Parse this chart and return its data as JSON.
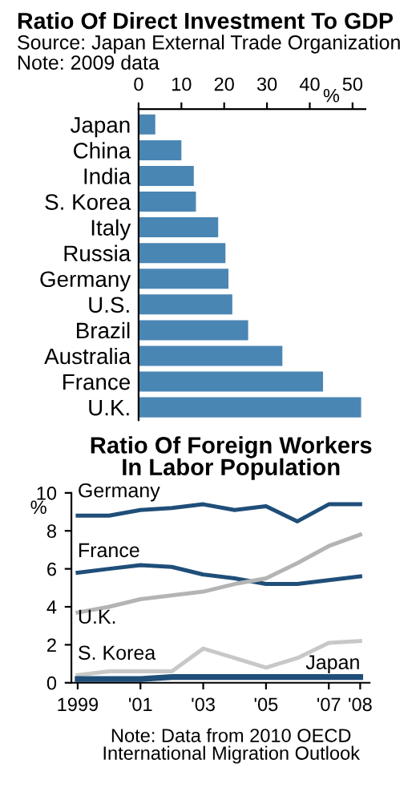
{
  "chart_data": [
    {
      "type": "bar",
      "orientation": "horizontal",
      "title": "Ratio Of Direct Investment To GDP",
      "subtitle": "Source: Japan External Trade Organization",
      "annotations": [
        "Note: 2009 data"
      ],
      "xlabel": "%",
      "categories": [
        "Japan",
        "China",
        "India",
        "S. Korea",
        "Italy",
        "Russia",
        "Germany",
        "U.S.",
        "Brazil",
        "Australia",
        "France",
        "U.K."
      ],
      "values": [
        3.9,
        10,
        12.9,
        13.4,
        18.6,
        20.3,
        21.0,
        21.9,
        25.6,
        33.6,
        43.1,
        52
      ],
      "color": "#4a86b4",
      "xlim": [
        0,
        53
      ],
      "xticks": [
        0,
        10,
        20,
        30,
        40,
        50
      ],
      "grid": false
    },
    {
      "type": "line",
      "title": "Ratio Of Foreign Workers\nIn Labor Population",
      "ylabel": "%",
      "annotations": [
        "Note: Data from 2010 OECD\nInternational Migration Outlook"
      ],
      "x": [
        1999,
        2000,
        2001,
        2002,
        2003,
        2004,
        2005,
        2006,
        2007,
        2008
      ],
      "series": [
        {
          "name": "Germany",
          "color": "#1f4e79",
          "values": [
            8.8,
            8.8,
            9.1,
            9.2,
            9.4,
            9.1,
            9.3,
            8.5,
            9.4,
            9.4
          ]
        },
        {
          "name": "France",
          "color": "#1f4e79",
          "values": [
            5.8,
            6.0,
            6.2,
            6.1,
            5.7,
            5.5,
            5.2,
            5.2,
            5.4,
            5.6
          ]
        },
        {
          "name": "U.K.",
          "color": "#b4b4b4",
          "values": [
            3.7,
            4.0,
            4.4,
            4.6,
            4.8,
            5.2,
            5.5,
            6.3,
            7.2,
            7.8
          ]
        },
        {
          "name": "S. Korea",
          "color": "#c8c8c8",
          "values": [
            0.4,
            0.6,
            0.6,
            0.6,
            1.8,
            1.3,
            0.8,
            1.3,
            2.1,
            2.2
          ]
        },
        {
          "name": "Japan",
          "color": "#1f4e79",
          "values": [
            0.2,
            0.2,
            0.2,
            0.3,
            0.3,
            0.3,
            0.3,
            0.3,
            0.3,
            0.3
          ]
        }
      ],
      "xlim": [
        1998.8,
        2008.3
      ],
      "xticks": [
        {
          "value": 1999,
          "label": "1999"
        },
        {
          "value": 2001,
          "label": "'01"
        },
        {
          "value": 2003,
          "label": "'03"
        },
        {
          "value": 2005,
          "label": "'05"
        },
        {
          "value": 2007,
          "label": "'07"
        },
        {
          "value": 2008,
          "label": "'08"
        }
      ],
      "ylim": [
        0,
        10
      ],
      "yticks": [
        0,
        2,
        4,
        6,
        8,
        10
      ],
      "grid": false,
      "marker": "none",
      "line_style": "solid"
    }
  ]
}
